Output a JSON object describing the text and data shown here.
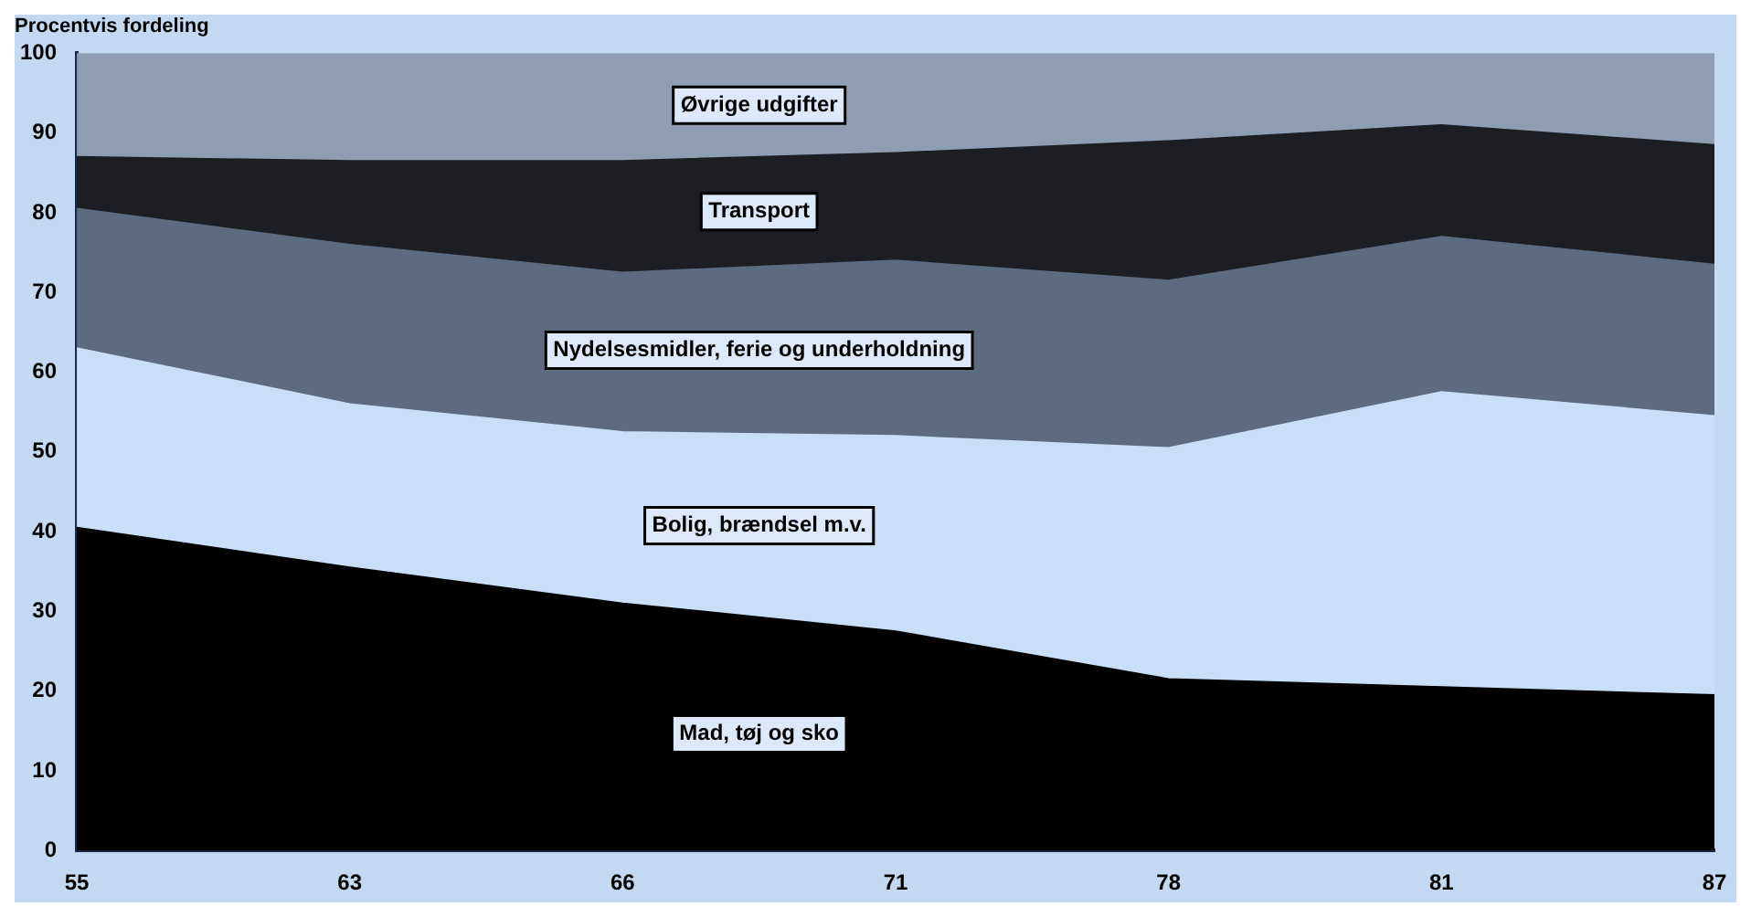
{
  "chart_data": {
    "type": "area",
    "title": "Procentvis fordeling",
    "stacked": true,
    "categories": [
      "55",
      "63",
      "66",
      "71",
      "78",
      "81",
      "87"
    ],
    "series": [
      {
        "name": "Mad, tøj og sko",
        "color": "#000000",
        "values": [
          40.5,
          35.5,
          31,
          27.5,
          21.5,
          20.5,
          19.5
        ]
      },
      {
        "name": "Bolig, brændsel m.v.",
        "color": "#c9dff7",
        "values": [
          22.5,
          20.5,
          21.5,
          24.5,
          29,
          37,
          35
        ]
      },
      {
        "name": "Nydelsesmidler, ferie og underholdning",
        "color": "#5c6b80",
        "values": [
          17.5,
          20,
          20,
          22,
          21,
          19.5,
          19
        ]
      },
      {
        "name": "Transport",
        "color": "#1c1e24",
        "values": [
          6.5,
          10.5,
          14,
          13.5,
          17.5,
          14,
          15
        ]
      },
      {
        "name": "Øvrige udgifter",
        "color": "#8e9db2",
        "values": [
          13,
          13.5,
          13.5,
          12.5,
          11,
          9,
          11.5
        ]
      }
    ],
    "ylim": [
      0,
      100
    ],
    "yticks": [
      0,
      10,
      20,
      30,
      40,
      50,
      60,
      70,
      80,
      90,
      100
    ],
    "grid": false,
    "legend": false
  }
}
